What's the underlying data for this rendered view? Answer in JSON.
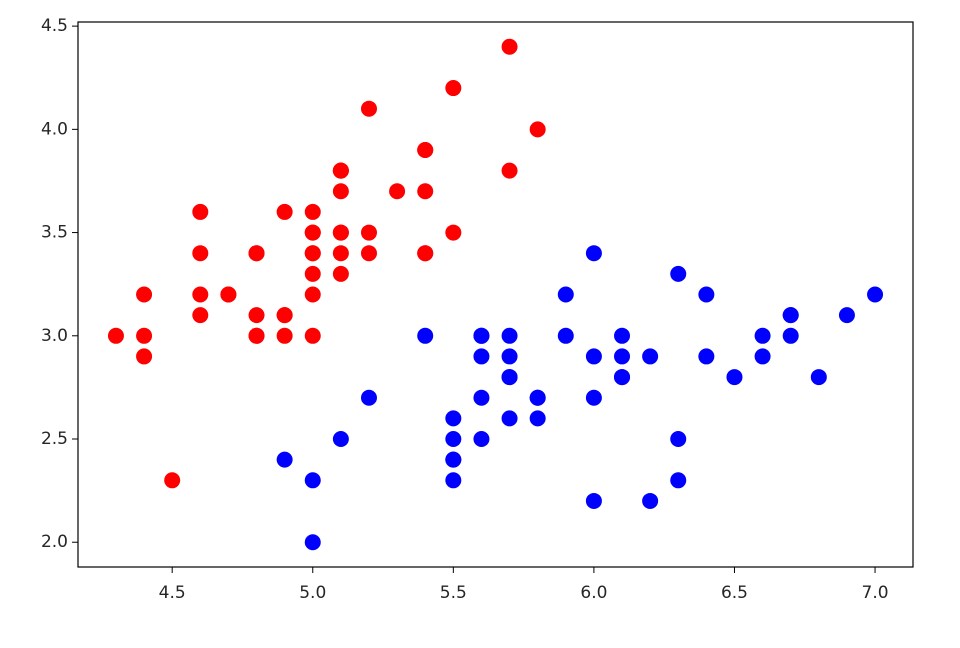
{
  "chart_data": {
    "type": "scatter",
    "xlim": [
      4.165,
      7.135
    ],
    "ylim": [
      1.88,
      4.52
    ],
    "xticks": [
      4.5,
      {
        "value": 5,
        "label": "5.0"
      },
      5.5,
      {
        "value": 6,
        "label": "6.0"
      },
      6.5,
      {
        "value": 7,
        "label": "7.0"
      }
    ],
    "yticks": [
      {
        "value": 2,
        "label": "2.0"
      },
      2.5,
      {
        "value": 3,
        "label": "3.0"
      },
      3.5,
      {
        "value": 4,
        "label": "4.0"
      },
      4.5
    ],
    "grid": false,
    "series": [
      {
        "color": "#ff0000",
        "x": [
          5.1,
          4.9,
          4.7,
          4.6,
          5.0,
          5.4,
          4.6,
          5.0,
          4.4,
          4.9,
          5.4,
          4.8,
          4.8,
          4.3,
          5.8,
          5.7,
          5.4,
          5.1,
          5.7,
          5.1,
          5.4,
          5.1,
          4.6,
          5.1,
          4.8,
          5.0,
          5.0,
          5.2,
          5.2,
          4.7,
          4.8,
          5.4,
          5.2,
          5.5,
          4.9,
          5.0,
          5.5,
          4.9,
          4.4,
          5.1,
          5.0,
          4.5,
          4.4,
          5.0,
          5.1,
          4.8,
          5.1,
          4.6,
          5.3,
          5.0
        ],
        "values": [
          3.5,
          3.0,
          3.2,
          3.1,
          3.6,
          3.9,
          3.4,
          3.4,
          2.9,
          3.1,
          3.7,
          3.4,
          3.0,
          3.0,
          4.0,
          4.4,
          3.9,
          3.5,
          3.8,
          3.8,
          3.4,
          3.7,
          3.6,
          3.3,
          3.4,
          3.0,
          3.4,
          3.5,
          3.4,
          3.2,
          3.1,
          3.4,
          4.1,
          4.2,
          3.1,
          3.2,
          3.5,
          3.6,
          3.0,
          3.4,
          3.5,
          2.3,
          3.2,
          3.5,
          3.8,
          3.0,
          3.8,
          3.2,
          3.7,
          3.3
        ]
      },
      {
        "color": "#0000ff",
        "x": [
          7.0,
          6.4,
          6.9,
          5.5,
          6.5,
          5.7,
          6.3,
          4.9,
          6.6,
          5.2,
          5.0,
          5.9,
          6.0,
          6.1,
          5.6,
          6.7,
          5.6,
          5.8,
          6.2,
          5.6,
          5.9,
          6.1,
          6.3,
          6.1,
          6.4,
          6.6,
          6.8,
          6.7,
          6.0,
          5.7,
          5.5,
          5.5,
          5.8,
          6.0,
          5.4,
          6.0,
          6.7,
          6.3,
          5.6,
          5.5,
          5.5,
          6.1,
          5.8,
          5.0,
          5.6,
          5.7,
          5.7,
          6.2,
          5.1,
          5.7
        ],
        "values": [
          3.2,
          3.2,
          3.1,
          2.3,
          2.8,
          2.8,
          3.3,
          2.4,
          2.9,
          2.7,
          2.0,
          3.0,
          2.2,
          2.9,
          2.9,
          3.1,
          3.0,
          2.7,
          2.2,
          2.5,
          3.2,
          2.8,
          2.5,
          2.8,
          2.9,
          3.0,
          2.8,
          3.0,
          2.9,
          2.6,
          2.4,
          2.4,
          2.7,
          2.7,
          3.0,
          3.4,
          3.1,
          2.3,
          3.0,
          2.5,
          2.6,
          3.0,
          2.6,
          2.3,
          2.7,
          3.0,
          2.9,
          2.9,
          2.5,
          2.8
        ]
      }
    ]
  }
}
